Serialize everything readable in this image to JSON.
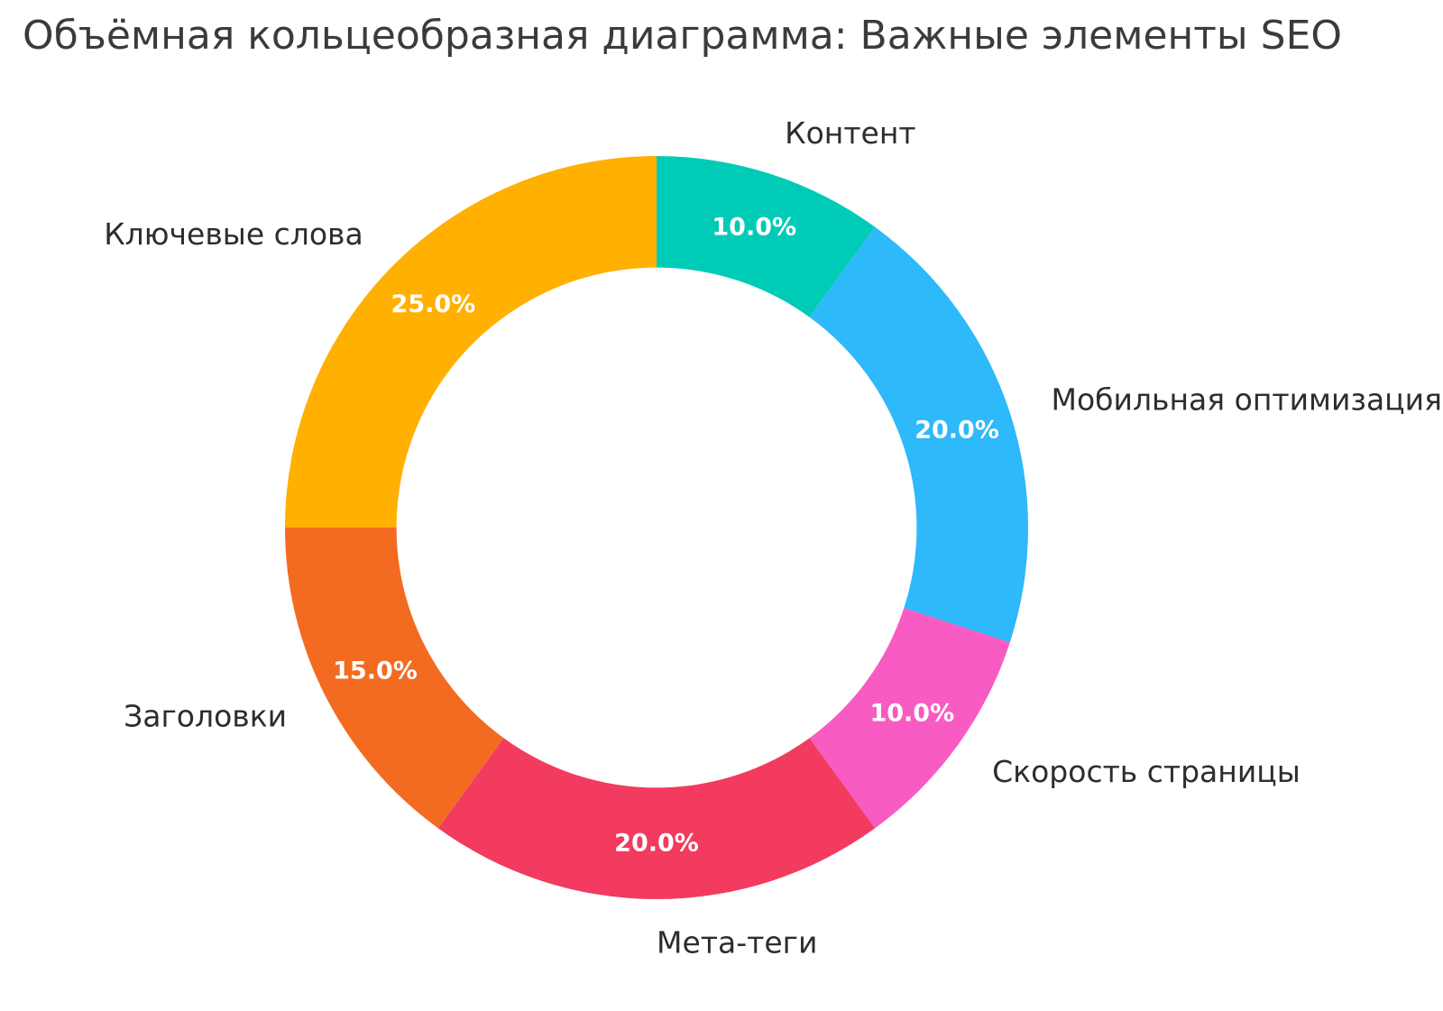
{
  "page": {
    "background": "#ffffff"
  },
  "chart_data": {
    "type": "pie",
    "subtype": "donut",
    "title": "Объёмная кольцеобразная диаграмма: Важные элементы SEO",
    "unit": "%",
    "labels": [
      "Контент",
      "Мобильная оптимизация",
      "Скорость страницы",
      "Мета-теги",
      "Заголовки",
      "Ключевые слова"
    ],
    "values": [
      10.0,
      20.0,
      10.0,
      20.0,
      15.0,
      25.0
    ],
    "percent_labels": [
      "10.0%",
      "20.0%",
      "10.0%",
      "20.0%",
      "15.0%",
      "25.0%"
    ],
    "colors": [
      "#00CBB7",
      "#2EB9FB",
      "#F85BC2",
      "#F23B5F",
      "#F36B21",
      "#FFB000"
    ],
    "hole": 0.7,
    "start_angle": "top",
    "direction": "clockwise",
    "legend": "none",
    "slice_label_color": "#ffffff",
    "category_label_color": "#2d2d2d",
    "title_color": "#3b3b3b"
  }
}
